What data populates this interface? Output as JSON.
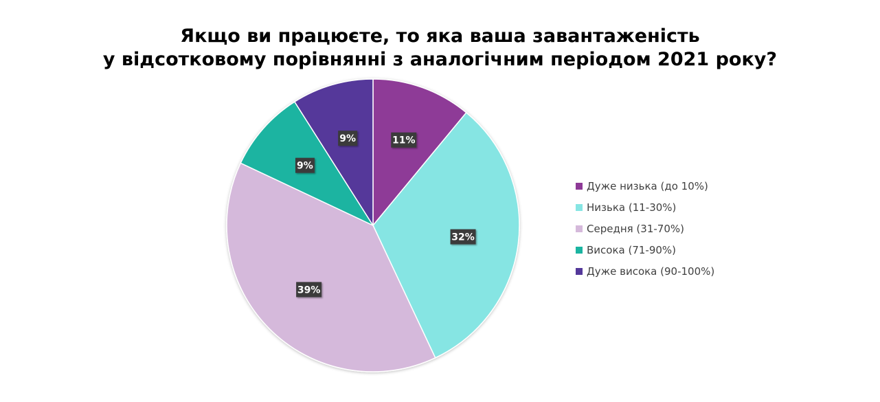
{
  "chart_data": {
    "type": "pie",
    "title_lines": [
      "Якщо ви працюєте, то яка ваша завантаженість",
      "у відсотковому порівнянні з аналогічним періодом 2021 року?"
    ],
    "categories": [
      "Дуже низька (до 10%)",
      "Низька (11-30%)",
      "Середня (31-70%)",
      "Висока (71-90%)",
      "Дуже висока (90-100%)"
    ],
    "values": [
      11,
      32,
      39,
      9,
      9
    ],
    "data_labels": [
      "11%",
      "32%",
      "39%",
      "9%",
      "9%"
    ],
    "colors": [
      "#8E3A97",
      "#86E5E3",
      "#D5B9DB",
      "#1BB4A1",
      "#54389A"
    ],
    "legend_position": "right"
  }
}
